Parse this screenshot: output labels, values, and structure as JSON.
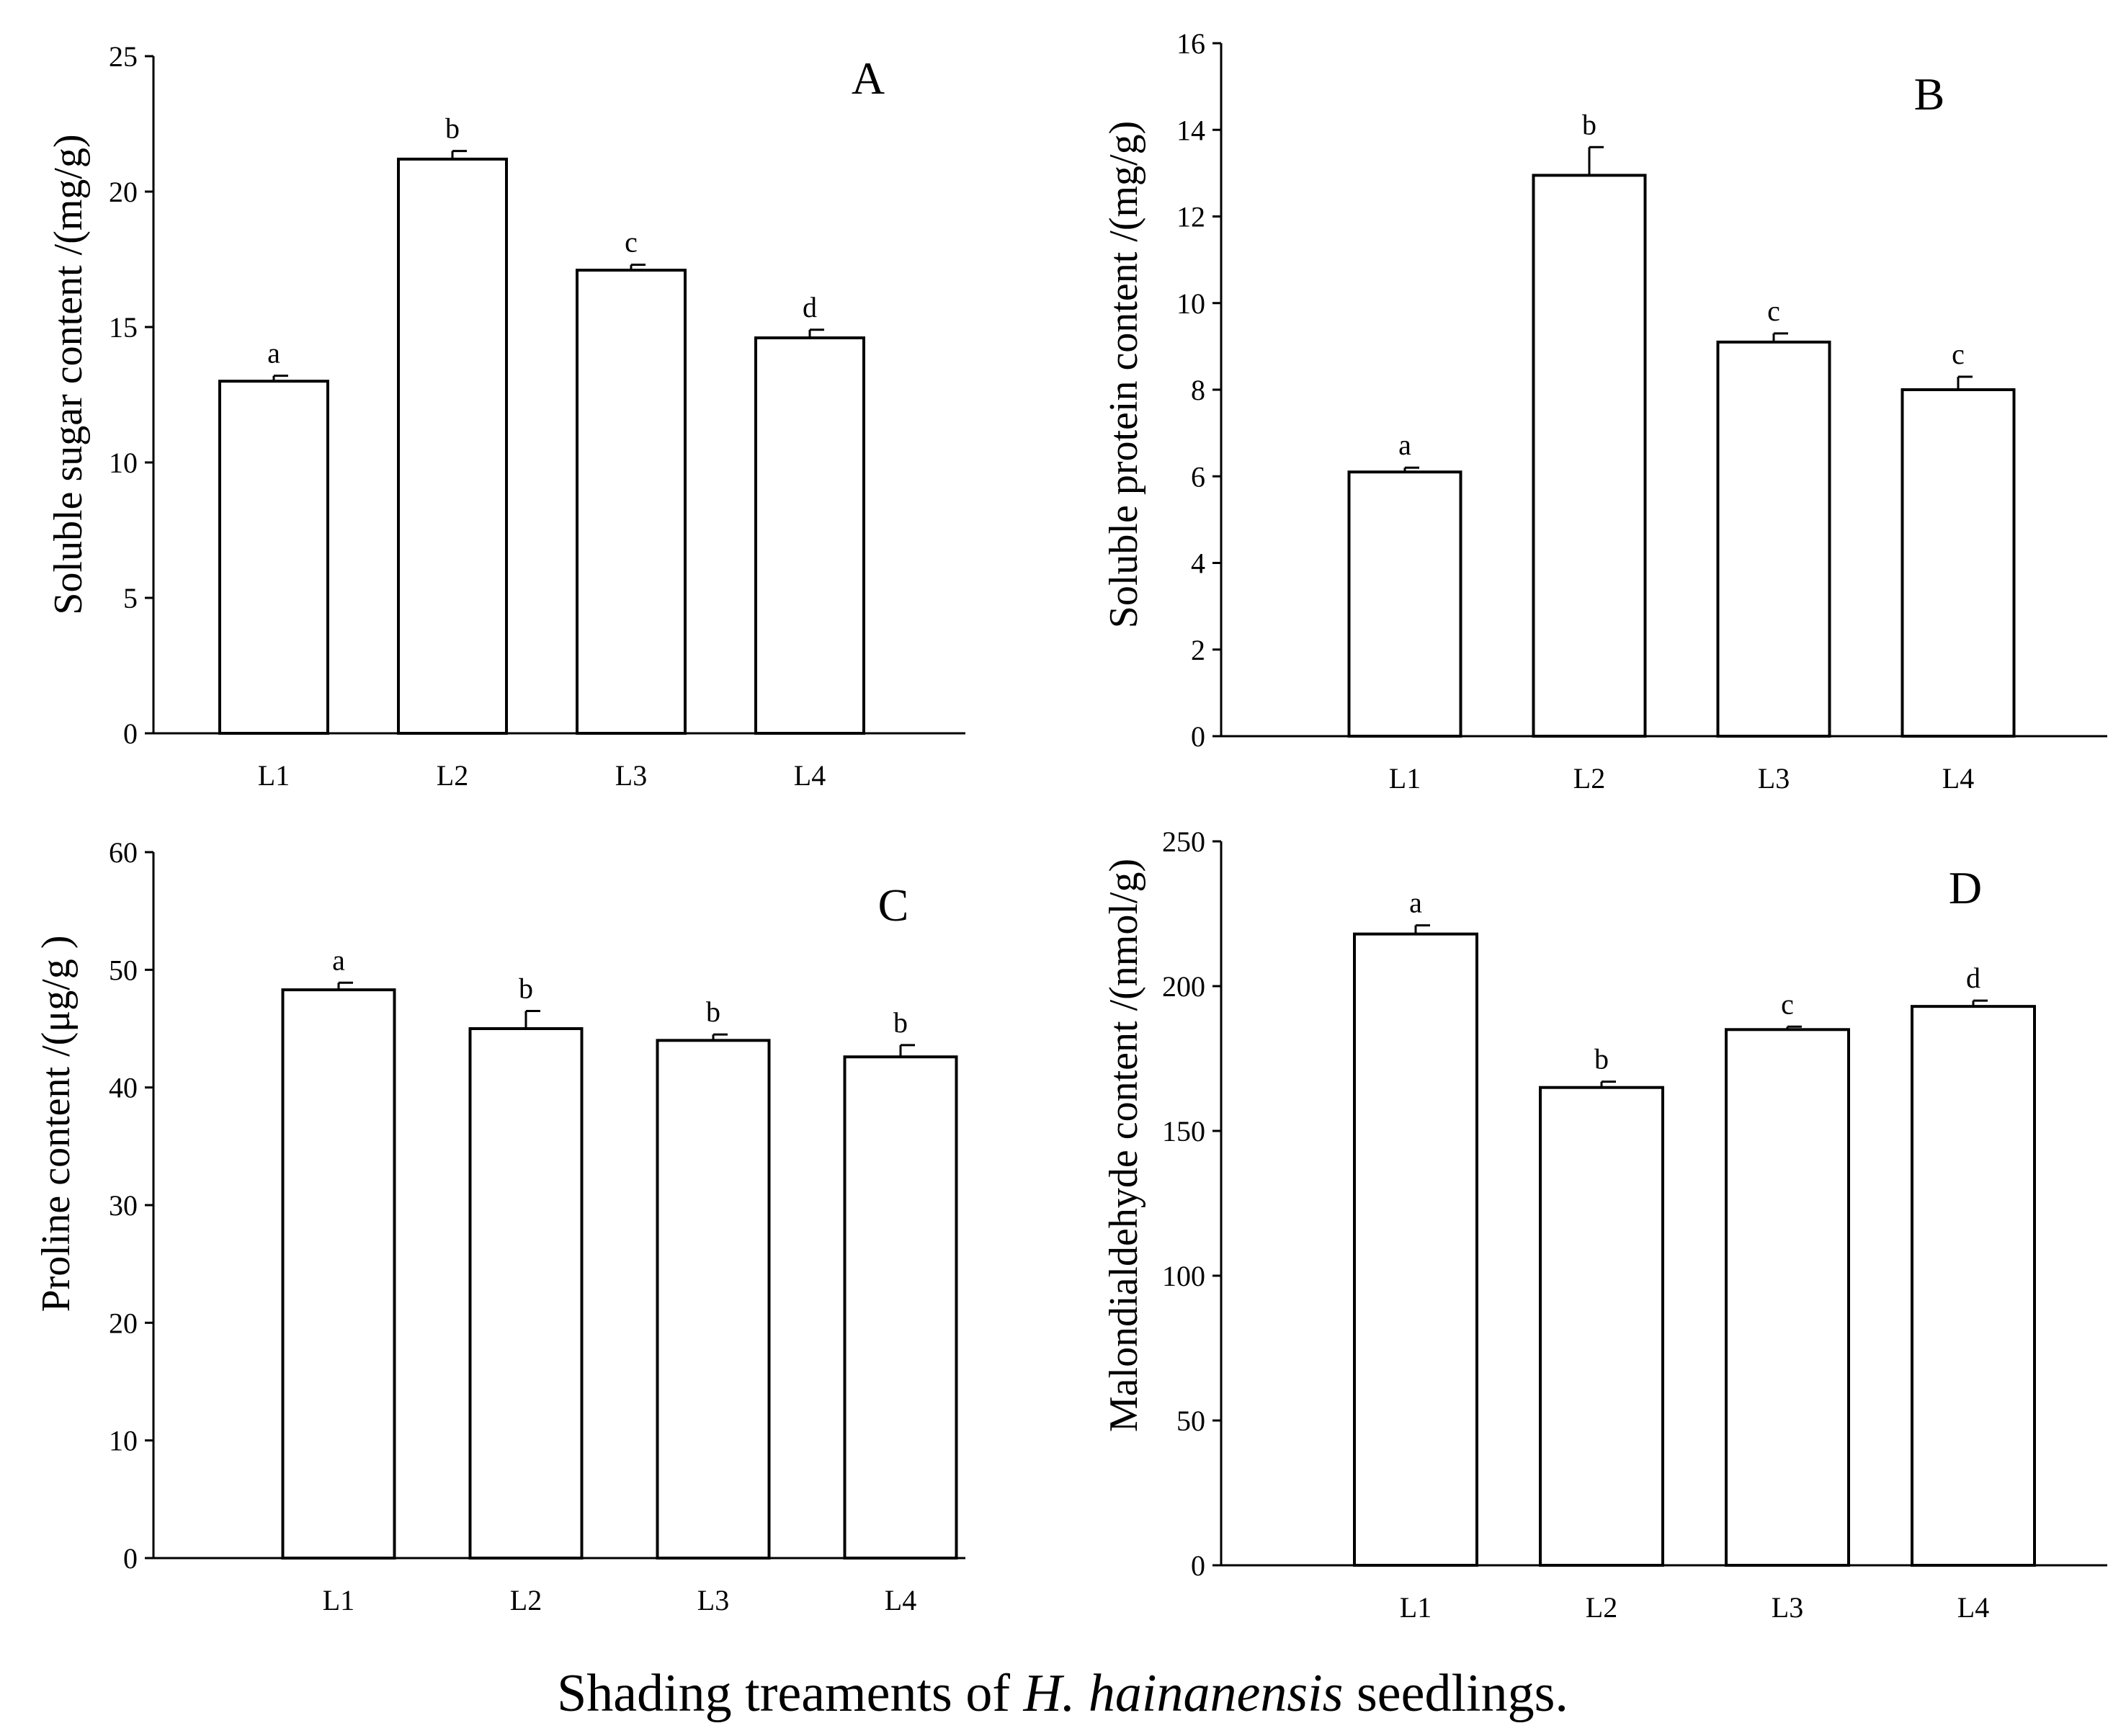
{
  "caption": {
    "prefix": "Shading treaments of ",
    "species": "H. hainanensis",
    "suffix": " seedlings."
  },
  "chart_data": [
    {
      "type": "bar",
      "panel_label": "A",
      "categories": [
        "L1",
        "L2",
        "L3",
        "L4"
      ],
      "values": [
        13.0,
        21.2,
        17.1,
        14.6
      ],
      "errors": [
        0.2,
        0.3,
        0.2,
        0.3
      ],
      "significance": [
        "a",
        "b",
        "c",
        "d"
      ],
      "ylabel": "Soluble sugar content /(mg/g)",
      "ylim": [
        0,
        25
      ],
      "yticks": [
        "0",
        "5",
        "10",
        "15",
        "20",
        "25"
      ],
      "ytick_values": [
        0,
        5,
        10,
        15,
        20,
        25
      ]
    },
    {
      "type": "bar",
      "panel_label": "B",
      "categories": [
        "L1",
        "L2",
        "L3",
        "L4"
      ],
      "values": [
        6.1,
        12.95,
        9.1,
        8.0
      ],
      "errors": [
        0.1,
        0.65,
        0.2,
        0.3
      ],
      "significance": [
        "a",
        "b",
        "c",
        "c"
      ],
      "ylabel": "Soluble protein content /(mg/g)",
      "ylim": [
        0,
        16
      ],
      "yticks": [
        "0",
        "2",
        "4",
        "6",
        "8",
        "10",
        "12",
        "14",
        "16"
      ],
      "ytick_values": [
        0,
        2,
        4,
        6,
        8,
        10,
        12,
        14,
        16
      ]
    },
    {
      "type": "bar",
      "panel_label": "C",
      "categories": [
        "L1",
        "L2",
        "L3",
        "L4"
      ],
      "values": [
        48.3,
        45.0,
        44.0,
        42.6
      ],
      "errors": [
        0.6,
        1.5,
        0.5,
        1.0
      ],
      "significance": [
        "a",
        "b",
        "b",
        "b"
      ],
      "ylabel": "Proline content /(μg/g )",
      "ylim": [
        0,
        60
      ],
      "yticks": [
        "0",
        "10",
        "20",
        "30",
        "40",
        "50",
        "60"
      ],
      "ytick_values": [
        0,
        10,
        20,
        30,
        40,
        50,
        60
      ]
    },
    {
      "type": "bar",
      "panel_label": "D",
      "categories": [
        "L1",
        "L2",
        "L3",
        "L4"
      ],
      "values": [
        218,
        165,
        185,
        193
      ],
      "errors": [
        3,
        2,
        1,
        2
      ],
      "significance": [
        "a",
        "b",
        "c",
        "d"
      ],
      "ylabel": "Malondialdehyde content /(nmol/g)",
      "ylim": [
        0,
        250
      ],
      "yticks": [
        "0",
        "50",
        "100",
        "150",
        "200",
        "250"
      ],
      "ytick_values": [
        0,
        50,
        100,
        150,
        200,
        250
      ]
    }
  ]
}
